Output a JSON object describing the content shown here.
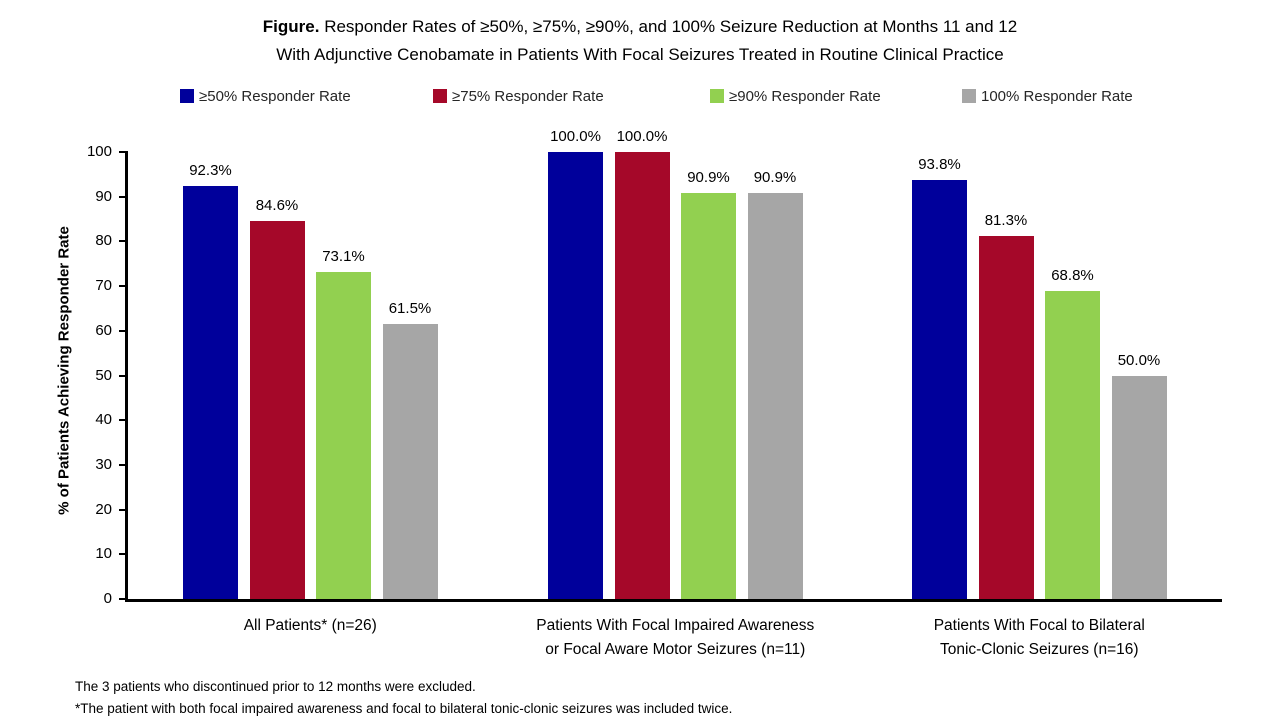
{
  "title": {
    "prefix": "Figure.",
    "line1_rest": " Responder Rates of ≥50%, ≥75%, ≥90%, and 100% Seizure Reduction at Months 11 and 12",
    "line2": "With Adjunctive Cenobamate in Patients With Focal Seizures Treated in Routine Clinical Practice"
  },
  "chart_data": {
    "type": "bar",
    "title": "Figure. Responder Rates of ≥50%, ≥75%, ≥90%, and 100% Seizure Reduction at Months 11 and 12 With Adjunctive Cenobamate in Patients With Focal Seizures Treated in Routine Clinical Practice",
    "xlabel": "",
    "ylabel": "% of Patients Achieving Responder Rate",
    "ylim": [
      0,
      100
    ],
    "yticks": [
      0,
      10,
      20,
      30,
      40,
      50,
      60,
      70,
      80,
      90,
      100
    ],
    "grid": false,
    "legend_position": "top",
    "categories": [
      [
        "All Patients* (n=26)"
      ],
      [
        "Patients With Focal Impaired Awareness",
        "or Focal Aware Motor Seizures (n=11)"
      ],
      [
        "Patients With Focal to Bilateral",
        "Tonic-Clonic Seizures (n=16)"
      ]
    ],
    "series": [
      {
        "name": "≥50% Responder Rate",
        "color": "#00009B",
        "values": [
          92.3,
          100.0,
          93.8
        ],
        "labels": [
          "92.3%",
          "100.0%",
          "93.8%"
        ]
      },
      {
        "name": "≥75% Responder Rate",
        "color": "#A50829",
        "values": [
          84.6,
          100.0,
          81.3
        ],
        "labels": [
          "84.6%",
          "100.0%",
          "81.3%"
        ]
      },
      {
        "name": "≥90% Responder Rate",
        "color": "#92D050",
        "values": [
          73.1,
          90.9,
          68.8
        ],
        "labels": [
          "73.1%",
          "90.9%",
          "68.8%"
        ]
      },
      {
        "name": "100% Responder Rate",
        "color": "#A6A6A6",
        "values": [
          61.5,
          90.9,
          50.0
        ],
        "labels": [
          "61.5%",
          "90.9%",
          "50.0%"
        ]
      }
    ]
  },
  "footnotes": [
    "The 3 patients who discontinued prior to 12 months were excluded.",
    "*The patient with both focal impaired awareness and focal to bilateral tonic-clonic seizures was included twice."
  ]
}
